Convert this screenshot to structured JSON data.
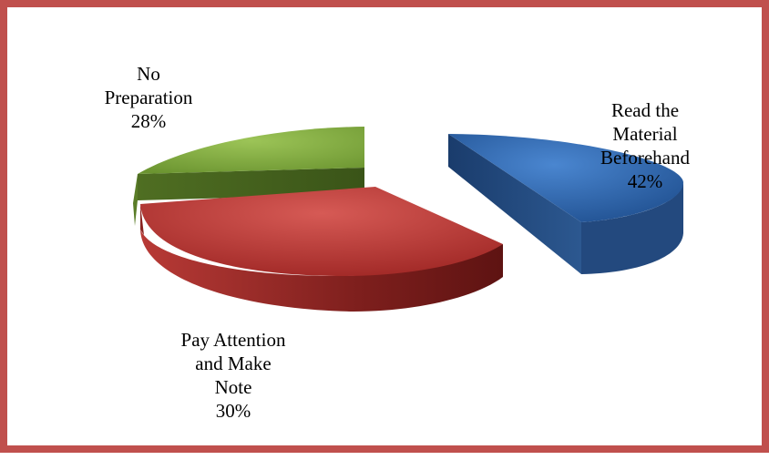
{
  "chart_data": {
    "type": "pie",
    "title": "",
    "legend": "none",
    "style": "3d-exploded",
    "slices": [
      {
        "label": "Read the Material Beforehand",
        "display_label": "Read the\nMaterial\nBeforehand",
        "value": 42,
        "value_label": "42%",
        "color": "#2f5d9e"
      },
      {
        "label": "Pay Attention and Make Note",
        "display_label": "Pay Attention\nand Make\nNote",
        "value": 30,
        "value_label": "30%",
        "color": "#b03030"
      },
      {
        "label": "No Preparation",
        "display_label": "No\nPreparation",
        "value": 28,
        "value_label": "28%",
        "color": "#7aa43a"
      }
    ]
  }
}
